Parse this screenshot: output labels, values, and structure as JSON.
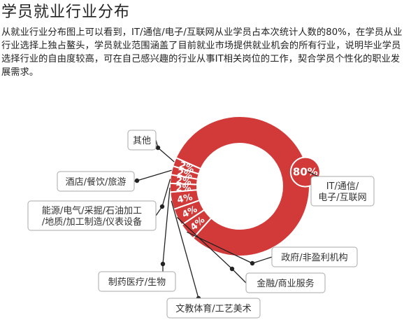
{
  "page": {
    "title": "学员就业行业分布",
    "description": "从就业行业分布图上可以看到，IT/通信/电子/互联网从业学员占本次统计人数的80%，在学员从业行业选择上独占鳌头，学员就业范围涵盖了目前就业市场提供就业机会的所有行业，说明毕业学员选择行业的自由度较高，可在自己感兴趣的行业从事IT相关岗位的工作，契合学员个性化的职业发展需求。"
  },
  "chart_data": {
    "type": "pie",
    "variant": "donut",
    "colors": {
      "fill": "#d23a3a",
      "separator": "#ffffff",
      "leader": "#222222",
      "label_box_border": "#aaaaaa"
    },
    "slices": [
      {
        "label_lines": [
          "IT/通信/",
          "电子/互联网"
        ],
        "value": 80,
        "value_label": "80%"
      },
      {
        "label_lines": [
          "政府/非盈利机构"
        ],
        "value": 4,
        "value_label": "4%"
      },
      {
        "label_lines": [
          "金融/商业服务"
        ],
        "value": 4,
        "value_label": "4%"
      },
      {
        "label_lines": [
          "文教体育/工艺美术"
        ],
        "value": 4,
        "value_label": "4%"
      },
      {
        "label_lines": [
          "制药医疗/生物"
        ],
        "value": 2,
        "value_label": "2%"
      },
      {
        "label_lines": [
          "能源/电气/采掘/石油加工",
          "/地质/加工制造/仪表设备"
        ],
        "value": 2,
        "value_label": "2%"
      },
      {
        "label_lines": [
          "酒店/餐饮/旅游"
        ],
        "value": 2,
        "value_label": "2%"
      },
      {
        "label_lines": [
          "其他"
        ],
        "value": 2,
        "value_label": "2%"
      }
    ]
  }
}
